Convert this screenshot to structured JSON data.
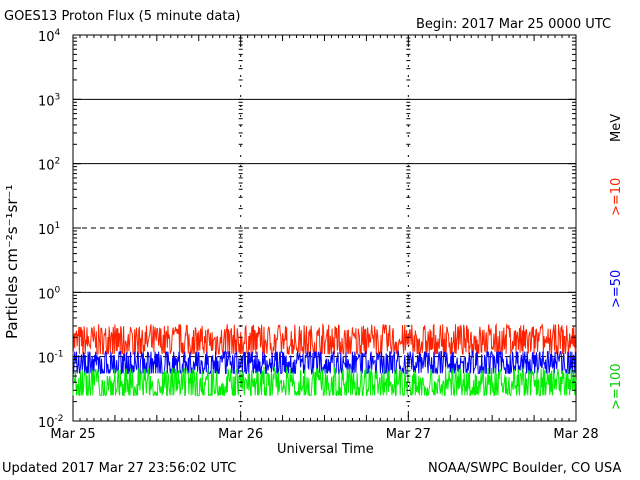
{
  "header": {
    "title": "GOES13 Proton Flux (5 minute data)",
    "begin": "Begin: 2017 Mar 25 0000 UTC"
  },
  "footer": {
    "updated": "Updated 2017 Mar 27 23:56:02 UTC",
    "credit": "NOAA/SWPC Boulder, CO USA"
  },
  "chart_data": {
    "type": "line",
    "title": "GOES13 Proton Flux (5 minute data)",
    "xlabel": "Universal Time",
    "ylabel": "Particles cm⁻²s⁻¹sr⁻¹",
    "yscale": "log",
    "ylim": [
      0.01,
      10000
    ],
    "xlim": [
      "2017-03-25 00:00",
      "2017-03-28 00:00"
    ],
    "x_tick_labels": [
      "Mar 25",
      "Mar 26",
      "Mar 27",
      "Mar 28"
    ],
    "y_tick_labels": [
      {
        "base": "10",
        "exp": "4"
      },
      {
        "base": "10",
        "exp": "3"
      },
      {
        "base": "10",
        "exp": "2"
      },
      {
        "base": "10",
        "exp": "1"
      },
      {
        "base": "10",
        "exp": "0"
      },
      {
        "base": "10",
        "exp": "-1"
      },
      {
        "base": "10",
        "exp": "-2"
      }
    ],
    "unit_label": "MeV",
    "grid": true,
    "legend_placement": "right",
    "series": [
      {
        "name": ">=10",
        "color": "#ff2200",
        "typical": 0.17,
        "min": 0.11,
        "max": 0.32
      },
      {
        "name": ">=50",
        "color": "#0000ff",
        "typical": 0.075,
        "min": 0.055,
        "max": 0.12
      },
      {
        "name": ">=100",
        "color": "#00ee00",
        "typical": 0.035,
        "min": 0.025,
        "max": 0.07
      }
    ]
  }
}
